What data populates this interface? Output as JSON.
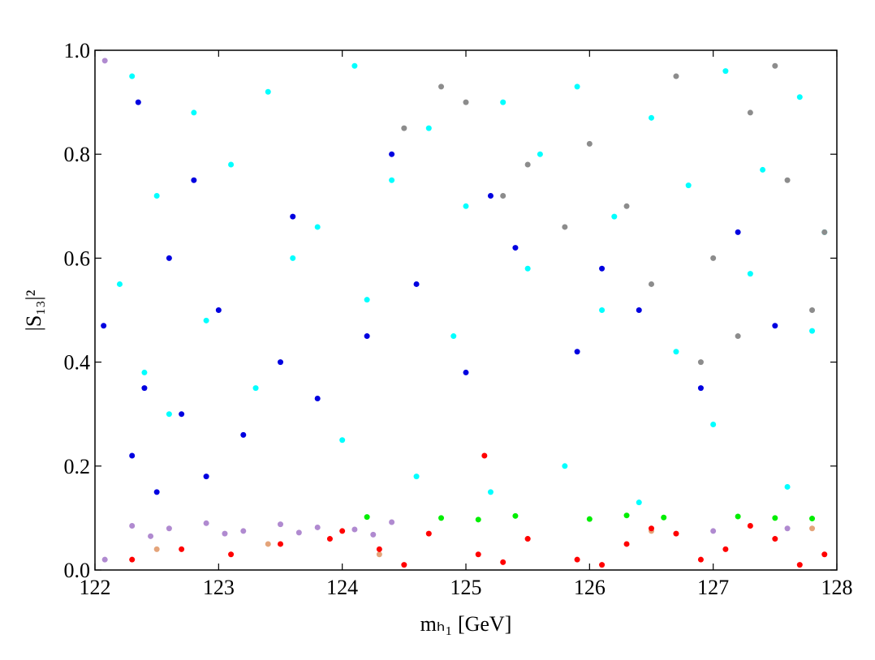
{
  "chart_data": {
    "type": "scatter",
    "x_label": "mₕ₁ [GeV]",
    "y_label": "|S₁₃|²",
    "xlim": [
      122,
      128
    ],
    "ylim": [
      0,
      1
    ],
    "xticks": [
      122,
      123,
      124,
      125,
      126,
      127,
      128
    ],
    "yticks": [
      {
        "value": 0,
        "label": "0.0"
      },
      {
        "value": 0.2,
        "label": "0.2"
      },
      {
        "value": 0.4,
        "label": "0.4"
      },
      {
        "value": 0.6,
        "label": "0.6"
      },
      {
        "value": 0.8,
        "label": "0.8"
      },
      {
        "value": 1,
        "label": "1.0"
      }
    ],
    "grid": false,
    "series": [
      {
        "color": "#00ffff",
        "x": [
          122.3,
          122.8,
          123.4,
          124.1,
          124.7,
          125.3,
          125.9,
          126.5,
          127.1,
          127.7,
          122.5,
          123.1,
          123.8,
          124.4,
          125.0,
          125.6,
          126.2,
          126.8,
          127.4,
          127.9,
          122.2,
          122.9,
          123.6,
          124.2,
          124.9,
          125.5,
          126.1,
          126.7,
          127.3,
          127.8,
          122.6,
          123.3,
          124.0,
          124.6,
          125.2,
          125.8,
          126.4,
          127.0,
          127.6,
          122.4
        ],
        "values": [
          0.95,
          0.88,
          0.92,
          0.97,
          0.85,
          0.9,
          0.93,
          0.87,
          0.96,
          0.91,
          0.72,
          0.78,
          0.66,
          0.75,
          0.7,
          0.8,
          0.68,
          0.74,
          0.77,
          0.65,
          0.55,
          0.48,
          0.6,
          0.52,
          0.45,
          0.58,
          0.5,
          0.42,
          0.57,
          0.46,
          0.3,
          0.35,
          0.25,
          0.18,
          0.15,
          0.2,
          0.13,
          0.28,
          0.16,
          0.38
        ]
      },
      {
        "color": "#0000e0",
        "x": [
          122.3,
          122.5,
          122.7,
          122.4,
          122.9,
          123.2,
          123.5,
          123.0,
          122.6,
          123.8,
          124.2,
          124.6,
          125.0,
          125.4,
          125.9,
          126.4,
          126.9,
          127.5,
          122.8,
          123.6,
          124.4,
          125.2,
          126.1,
          127.2,
          122.35,
          122.07
        ],
        "values": [
          0.22,
          0.15,
          0.3,
          0.35,
          0.18,
          0.26,
          0.4,
          0.5,
          0.6,
          0.33,
          0.45,
          0.55,
          0.38,
          0.62,
          0.42,
          0.5,
          0.35,
          0.47,
          0.75,
          0.68,
          0.8,
          0.72,
          0.58,
          0.65,
          0.9,
          0.47
        ]
      },
      {
        "color": "#8c8c8c",
        "x": [
          124.5,
          125.0,
          125.5,
          126.0,
          126.3,
          126.7,
          127.0,
          127.3,
          127.6,
          127.9,
          125.8,
          126.5,
          127.2,
          127.8,
          124.8,
          126.9,
          127.5,
          125.3
        ],
        "values": [
          0.85,
          0.9,
          0.78,
          0.82,
          0.7,
          0.95,
          0.6,
          0.88,
          0.75,
          0.65,
          0.66,
          0.55,
          0.45,
          0.5,
          0.93,
          0.4,
          0.97,
          0.72
        ]
      },
      {
        "color": "#00ee00",
        "x": [
          124.2,
          124.8,
          125.4,
          126.0,
          126.6,
          127.2,
          127.8,
          125.1,
          126.3,
          127.5
        ],
        "values": [
          0.102,
          0.1,
          0.104,
          0.098,
          0.101,
          0.103,
          0.099,
          0.097,
          0.105,
          0.1
        ]
      },
      {
        "color": "#b08ad0",
        "x": [
          122.3,
          122.6,
          122.9,
          123.2,
          123.5,
          123.8,
          124.1,
          124.4,
          122.45,
          123.05,
          123.65,
          124.25,
          127.0,
          127.6,
          122.08,
          122.08
        ],
        "values": [
          0.085,
          0.08,
          0.09,
          0.075,
          0.088,
          0.082,
          0.078,
          0.092,
          0.065,
          0.07,
          0.072,
          0.068,
          0.075,
          0.08,
          0.98,
          0.02
        ]
      },
      {
        "color": "#e4a47a",
        "x": [
          122.5,
          123.4,
          124.3,
          126.5,
          127.8,
          125.5
        ],
        "values": [
          0.04,
          0.05,
          0.03,
          0.075,
          0.08,
          0.06
        ]
      },
      {
        "color": "#ff0000",
        "x": [
          122.3,
          122.7,
          123.1,
          123.5,
          123.9,
          124.3,
          124.7,
          125.1,
          125.5,
          125.9,
          126.3,
          126.7,
          127.1,
          127.5,
          127.9,
          124.5,
          125.3,
          126.1,
          126.9,
          127.7,
          125.15,
          124.0,
          126.5,
          127.3
        ],
        "values": [
          0.02,
          0.04,
          0.03,
          0.05,
          0.06,
          0.04,
          0.07,
          0.03,
          0.06,
          0.02,
          0.05,
          0.07,
          0.04,
          0.06,
          0.03,
          0.01,
          0.015,
          0.01,
          0.02,
          0.01,
          0.22,
          0.075,
          0.08,
          0.085
        ]
      }
    ]
  }
}
